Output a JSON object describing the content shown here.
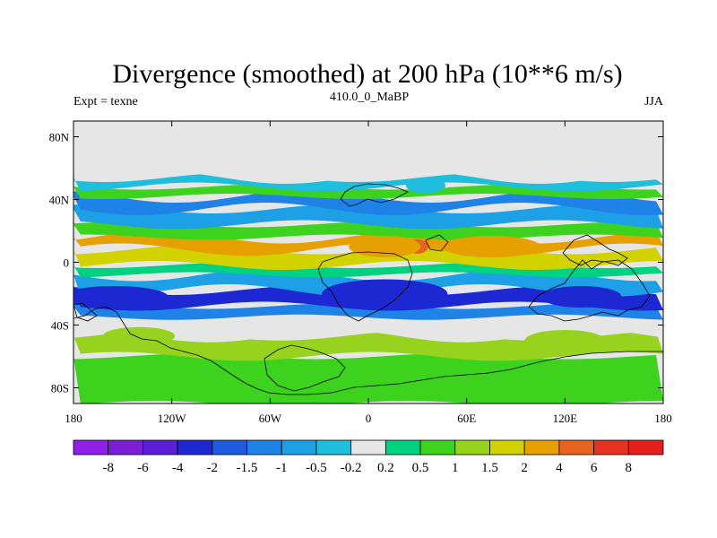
{
  "chart_data": {
    "type": "heatmap",
    "title": "Divergence (smoothed) at 200 hPa (10**6 m/s)",
    "subtitle_left": "Expt = texne",
    "subtitle_center": "410.0_0_MaBP",
    "subtitle_right": "JJA",
    "x_ticks": [
      "180",
      "120W",
      "60W",
      "0",
      "60E",
      "120E",
      "180"
    ],
    "x_tick_values": [
      -180,
      -120,
      -60,
      0,
      60,
      120,
      180
    ],
    "y_ticks": [
      "80N",
      "40N",
      "0",
      "40S",
      "80S"
    ],
    "y_tick_values": [
      80,
      40,
      0,
      -40,
      -80
    ],
    "xlim": [
      -180,
      180
    ],
    "ylim": [
      -90,
      90
    ],
    "no_data_color": "#e6e6e6",
    "colorbar": {
      "levels": [
        "-8",
        "-6",
        "-4",
        "-2",
        "-1.5",
        "-1",
        "-0.5",
        "-0.2",
        "0.2",
        "0.5",
        "1",
        "1.5",
        "2",
        "4",
        "6",
        "8"
      ],
      "level_values": [
        -8,
        -6,
        -4,
        -2,
        -1.5,
        -1,
        -0.5,
        -0.2,
        0.2,
        0.5,
        1,
        1.5,
        2,
        4,
        6,
        8
      ],
      "colors": [
        "#8f1ee6",
        "#7a1fd6",
        "#5a1ed6",
        "#1e28d2",
        "#1e5ae0",
        "#1e82e6",
        "#1ea0e6",
        "#1ebedc",
        "#e6e6e6",
        "#00d282",
        "#3cd21e",
        "#96d21e",
        "#d2d200",
        "#e6a000",
        "#e6641e",
        "#e6321e",
        "#e61e1e"
      ]
    },
    "bands": [
      {
        "lat": [
          -90,
          -60
        ],
        "label": "0.2",
        "value": 0.5
      },
      {
        "lat": [
          -60,
          -47
        ],
        "label": "1",
        "value": 1.0
      },
      {
        "lat": [
          -47,
          -35
        ],
        "label": "-0.2",
        "value": -0.1
      },
      {
        "lat": [
          -35,
          -28
        ],
        "label": "-1",
        "value": -1.2
      },
      {
        "lat": [
          -28,
          -18
        ],
        "label": "-2",
        "value": -2.2
      },
      {
        "lat": [
          -18,
          -8
        ],
        "label": "-0.5",
        "value": -0.6
      },
      {
        "lat": [
          -8,
          -2
        ],
        "label": "0.2",
        "value": 0.3
      },
      {
        "lat": [
          -2,
          8
        ],
        "label": "1.5",
        "value": 1.6
      },
      {
        "lat": [
          8,
          16
        ],
        "label": "2",
        "value": 2.5
      },
      {
        "lat": [
          16,
          24
        ],
        "label": "0.5",
        "value": 0.7
      },
      {
        "lat": [
          24,
          34
        ],
        "label": "-0.5",
        "value": -0.7
      },
      {
        "lat": [
          34,
          42
        ],
        "label": "-1",
        "value": -1.1
      },
      {
        "lat": [
          42,
          48
        ],
        "label": "0.5",
        "value": 0.6
      },
      {
        "lat": [
          48,
          54
        ],
        "label": "-0.5",
        "value": -0.4
      },
      {
        "lat": [
          54,
          90
        ],
        "label": "no data",
        "value": null
      }
    ],
    "features": [
      {
        "name": "max-divergence-cell",
        "lon": 30,
        "lat": 10,
        "value": 4.5
      },
      {
        "name": "central-divergence-blob",
        "lon": 10,
        "lat": 10,
        "value": 2.5
      },
      {
        "name": "asian-divergence-blob",
        "lon": 75,
        "lat": 10,
        "value": 2.2
      },
      {
        "name": "atlantic-convergence-core",
        "lon": 10,
        "lat": -20,
        "value": -2.8
      },
      {
        "name": "pacific-convergence-core",
        "lon": -155,
        "lat": -22,
        "value": -2.6
      },
      {
        "name": "indian-convergence-core",
        "lon": 130,
        "lat": -22,
        "value": -2.3
      },
      {
        "name": "southern-green-blob-west",
        "lon": -140,
        "lat": -47,
        "value": 1.2
      },
      {
        "name": "southern-green-blob-east",
        "lon": 120,
        "lat": -50,
        "value": 1.2
      },
      {
        "name": "northern-cyan-blob",
        "lon": 35,
        "lat": 49,
        "value": -0.5
      }
    ]
  }
}
